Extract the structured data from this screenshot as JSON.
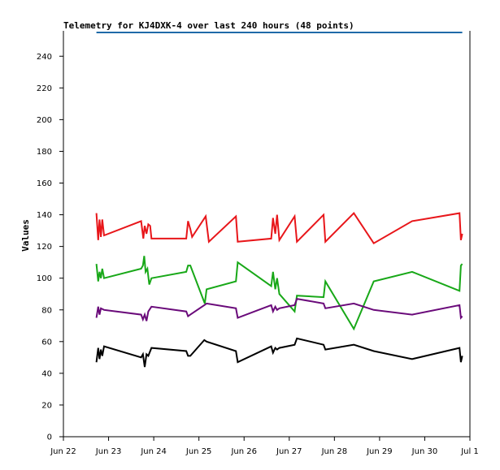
{
  "chart_data": {
    "type": "line",
    "title": "Telemetry for KJ4DXK-4 over last 240 hours (48 points)",
    "xlabel": "",
    "ylabel": "Values",
    "ylim": [
      0,
      256
    ],
    "xlim": [
      "Jun 22",
      "Jul 1"
    ],
    "x_ticks": [
      "Jun 22",
      "Jun 23",
      "Jun 24",
      "Jun 25",
      "Jun 26",
      "Jun 27",
      "Jun 28",
      "Jun 29",
      "Jun 30",
      "Jul 1"
    ],
    "y_ticks": [
      0,
      20,
      40,
      60,
      80,
      100,
      120,
      140,
      160,
      180,
      200,
      220,
      240
    ],
    "grid": false,
    "colors": {
      "red": "#e8161a",
      "green": "#18a818",
      "purple": "#6a0a7a",
      "black": "#000000",
      "top": "#1f6aa8"
    },
    "series": [
      {
        "color": "#e8161a",
        "points": [
          [
            0.73,
            141
          ],
          [
            0.77,
            124
          ],
          [
            0.8,
            137
          ],
          [
            0.83,
            126
          ],
          [
            0.86,
            137
          ],
          [
            0.9,
            127
          ],
          [
            1.72,
            136
          ],
          [
            1.77,
            125
          ],
          [
            1.8,
            133
          ],
          [
            1.84,
            128
          ],
          [
            1.88,
            134
          ],
          [
            1.92,
            133
          ],
          [
            1.95,
            125
          ],
          [
            2.72,
            125
          ],
          [
            2.76,
            136
          ],
          [
            2.81,
            131
          ],
          [
            2.85,
            126
          ],
          [
            3.15,
            139
          ],
          [
            3.22,
            123
          ],
          [
            3.82,
            139
          ],
          [
            3.86,
            123
          ],
          [
            4.6,
            125
          ],
          [
            4.64,
            138
          ],
          [
            4.69,
            128
          ],
          [
            4.73,
            140
          ],
          [
            4.78,
            124
          ],
          [
            5.12,
            139
          ],
          [
            5.17,
            123
          ],
          [
            5.76,
            140
          ],
          [
            5.8,
            123
          ],
          [
            6.43,
            141
          ],
          [
            6.87,
            122
          ],
          [
            7.72,
            136
          ],
          [
            8.77,
            141
          ],
          [
            8.8,
            124
          ],
          [
            8.83,
            128
          ]
        ]
      },
      {
        "color": "#18a818",
        "points": [
          [
            0.73,
            109
          ],
          [
            0.77,
            98
          ],
          [
            0.8,
            104
          ],
          [
            0.83,
            100
          ],
          [
            0.86,
            106
          ],
          [
            0.9,
            100
          ],
          [
            1.72,
            106
          ],
          [
            1.76,
            108
          ],
          [
            1.79,
            114
          ],
          [
            1.82,
            104
          ],
          [
            1.86,
            106
          ],
          [
            1.9,
            96
          ],
          [
            1.95,
            100
          ],
          [
            2.72,
            104
          ],
          [
            2.76,
            108
          ],
          [
            2.81,
            108
          ],
          [
            3.13,
            84
          ],
          [
            3.17,
            93
          ],
          [
            3.82,
            98
          ],
          [
            3.86,
            110
          ],
          [
            4.6,
            95
          ],
          [
            4.64,
            104
          ],
          [
            4.69,
            93
          ],
          [
            4.73,
            100
          ],
          [
            4.78,
            90
          ],
          [
            5.12,
            79
          ],
          [
            5.17,
            89
          ],
          [
            5.76,
            88
          ],
          [
            5.8,
            98
          ],
          [
            6.43,
            68
          ],
          [
            6.87,
            98
          ],
          [
            7.72,
            104
          ],
          [
            8.77,
            92
          ],
          [
            8.8,
            108
          ],
          [
            8.83,
            109
          ]
        ]
      },
      {
        "color": "#6a0a7a",
        "points": [
          [
            0.73,
            75
          ],
          [
            0.77,
            82
          ],
          [
            0.8,
            77
          ],
          [
            0.83,
            81
          ],
          [
            0.9,
            80
          ],
          [
            1.72,
            77
          ],
          [
            1.76,
            74
          ],
          [
            1.8,
            77
          ],
          [
            1.84,
            73
          ],
          [
            1.88,
            79
          ],
          [
            1.95,
            82
          ],
          [
            2.72,
            79
          ],
          [
            2.76,
            76
          ],
          [
            2.81,
            77
          ],
          [
            3.12,
            83
          ],
          [
            3.17,
            84
          ],
          [
            3.82,
            81
          ],
          [
            3.86,
            75
          ],
          [
            4.6,
            83
          ],
          [
            4.64,
            79
          ],
          [
            4.69,
            82
          ],
          [
            4.73,
            80
          ],
          [
            4.78,
            81
          ],
          [
            5.12,
            83
          ],
          [
            5.17,
            87
          ],
          [
            5.76,
            84
          ],
          [
            5.8,
            81
          ],
          [
            6.43,
            84
          ],
          [
            6.87,
            80
          ],
          [
            7.72,
            77
          ],
          [
            8.77,
            83
          ],
          [
            8.8,
            75
          ],
          [
            8.83,
            76
          ]
        ]
      },
      {
        "color": "#000000",
        "points": [
          [
            0.73,
            47
          ],
          [
            0.77,
            56
          ],
          [
            0.8,
            49
          ],
          [
            0.83,
            55
          ],
          [
            0.86,
            51
          ],
          [
            0.9,
            57
          ],
          [
            1.72,
            50
          ],
          [
            1.76,
            52
          ],
          [
            1.8,
            44
          ],
          [
            1.84,
            52
          ],
          [
            1.88,
            51
          ],
          [
            1.95,
            56
          ],
          [
            2.72,
            54
          ],
          [
            2.76,
            51
          ],
          [
            2.81,
            51
          ],
          [
            3.12,
            61
          ],
          [
            3.17,
            60
          ],
          [
            3.82,
            54
          ],
          [
            3.86,
            47
          ],
          [
            4.6,
            57
          ],
          [
            4.64,
            53
          ],
          [
            4.69,
            56
          ],
          [
            4.73,
            55
          ],
          [
            4.78,
            56
          ],
          [
            5.12,
            58
          ],
          [
            5.17,
            62
          ],
          [
            5.76,
            58
          ],
          [
            5.8,
            55
          ],
          [
            6.43,
            58
          ],
          [
            6.87,
            54
          ],
          [
            7.72,
            49
          ],
          [
            8.77,
            56
          ],
          [
            8.8,
            47
          ],
          [
            8.83,
            51
          ]
        ]
      },
      {
        "color": "#1f6aa8",
        "points": [
          [
            0.73,
            255
          ],
          [
            8.83,
            255
          ]
        ]
      }
    ]
  }
}
